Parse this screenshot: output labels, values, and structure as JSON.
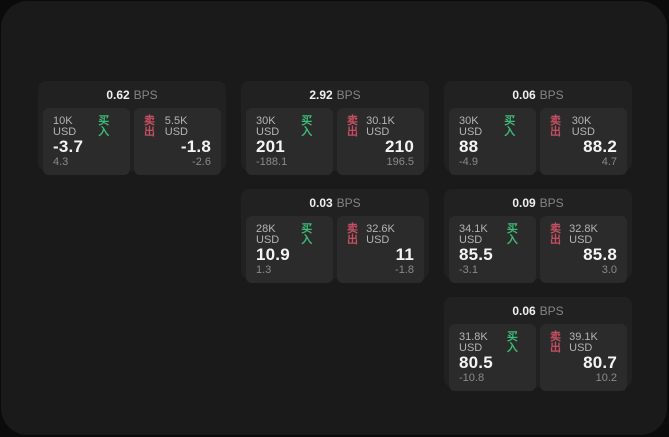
{
  "labels": {
    "bps": "BPS",
    "buy": "买入",
    "sell": "卖出"
  },
  "colors": {
    "background": "#0b0b0b",
    "panel": "#1a1a1a",
    "card": "#212121",
    "subpanel": "#2b2b2b",
    "buy": "#3dba77",
    "sell": "#c44f62"
  },
  "cards": [
    {
      "bps": "0.62",
      "buy": {
        "amount": "10K USD",
        "value": "-3.7",
        "delta": "4.3"
      },
      "sell": {
        "amount": "5.5K USD",
        "value": "-1.8",
        "delta": "-2.6"
      }
    },
    {
      "bps": "2.92",
      "buy": {
        "amount": "30K USD",
        "value": "201",
        "delta": "-188.1"
      },
      "sell": {
        "amount": "30.1K USD",
        "value": "210",
        "delta": "196.5"
      }
    },
    {
      "bps": "0.06",
      "buy": {
        "amount": "30K USD",
        "value": "88",
        "delta": "-4.9"
      },
      "sell": {
        "amount": "30K USD",
        "value": "88.2",
        "delta": "4.7"
      }
    },
    {
      "bps": "0.03",
      "buy": {
        "amount": "28K USD",
        "value": "10.9",
        "delta": "1.3"
      },
      "sell": {
        "amount": "32.6K USD",
        "value": "11",
        "delta": "-1.8"
      }
    },
    {
      "bps": "0.09",
      "buy": {
        "amount": "34.1K USD",
        "value": "85.5",
        "delta": "-3.1"
      },
      "sell": {
        "amount": "32.8K USD",
        "value": "85.8",
        "delta": "3.0"
      }
    },
    {
      "bps": "0.06",
      "buy": {
        "amount": "31.8K USD",
        "value": "80.5",
        "delta": "-10.8"
      },
      "sell": {
        "amount": "39.1K USD",
        "value": "80.7",
        "delta": "10.2"
      }
    }
  ]
}
